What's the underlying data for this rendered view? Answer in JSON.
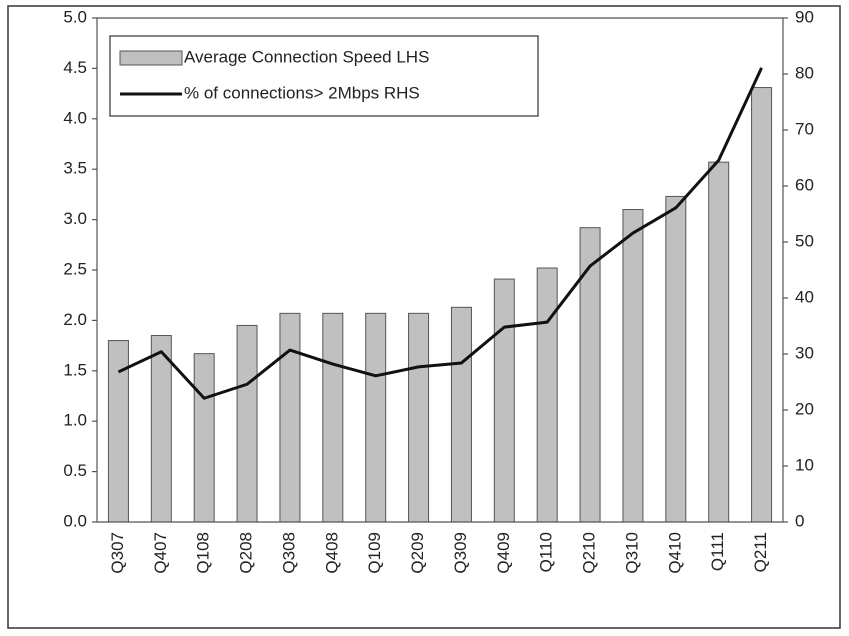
{
  "chart_data": {
    "type": "bar",
    "categories": [
      "Q307",
      "Q407",
      "Q108",
      "Q208",
      "Q308",
      "Q408",
      "Q109",
      "Q209",
      "Q309",
      "Q409",
      "Q110",
      "Q210",
      "Q310",
      "Q410",
      "Q111",
      "Q211"
    ],
    "series": [
      {
        "name": "Average Connection Speed LHS",
        "type": "bar",
        "color": "#c0c0c0",
        "values": [
          1.8,
          1.85,
          1.67,
          1.95,
          2.07,
          2.07,
          2.07,
          2.07,
          2.13,
          2.41,
          2.52,
          2.92,
          3.1,
          3.23,
          3.57,
          4.31
        ]
      },
      {
        "name": "% of connections> 2Mbps RHS",
        "type": "line",
        "axis": "y2",
        "color": "#111111",
        "values": [
          26.8,
          30.4,
          22.1,
          24.6,
          30.7,
          28.2,
          26.1,
          27.7,
          28.4,
          34.8,
          35.7,
          45.7,
          51.6,
          56.1,
          64.6,
          81.1
        ]
      }
    ],
    "ylim": [
      0,
      5
    ],
    "yticks": [
      {
        "value": 0,
        "label": "0.0"
      },
      0.5,
      {
        "value": 1,
        "label": "1.0"
      },
      1.5,
      {
        "value": 2,
        "label": "2.0"
      },
      2.5,
      {
        "value": 3,
        "label": "3.0"
      },
      3.5,
      {
        "value": 4,
        "label": "4.0"
      },
      4.5,
      {
        "value": 5,
        "label": "5.0"
      }
    ],
    "y2lim": [
      0,
      90
    ],
    "y2ticks": [
      0,
      10,
      20,
      30,
      40,
      50,
      60,
      70,
      80,
      90
    ],
    "legend": "upper left"
  }
}
